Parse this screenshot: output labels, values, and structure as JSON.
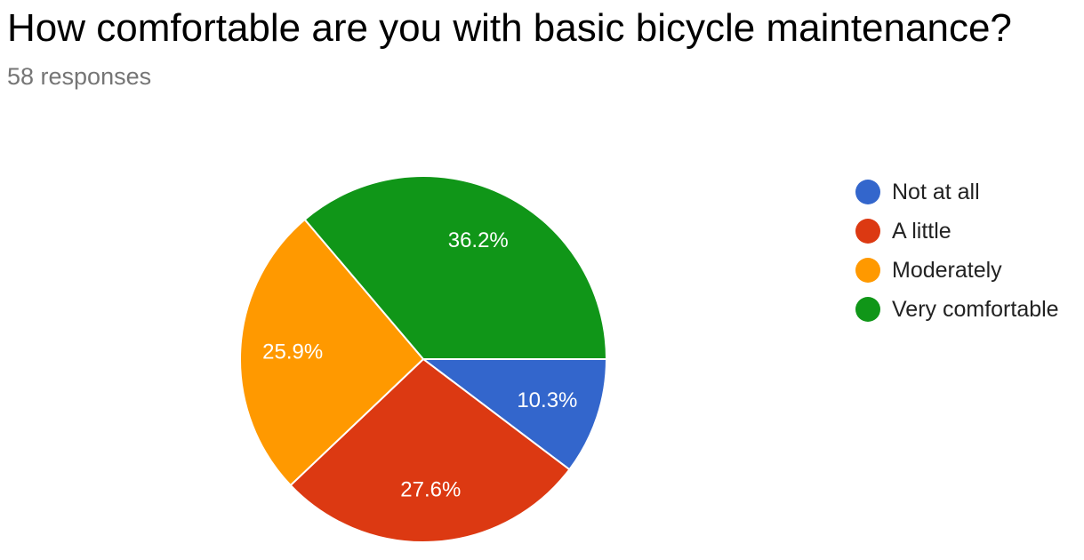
{
  "title": "How comfortable are you with basic bicycle maintenance?",
  "subtitle": "58 responses",
  "chart_data": {
    "type": "pie",
    "title": "How comfortable are you with basic bicycle maintenance?",
    "subtitle": "58 responses",
    "legend_position": "right",
    "slices": [
      {
        "name": "Not at all",
        "value": 10.3,
        "label": "10.3%",
        "color": "#3366cc"
      },
      {
        "name": "A little",
        "value": 27.6,
        "label": "27.6%",
        "color": "#dc3912"
      },
      {
        "name": "Moderately",
        "value": 25.9,
        "label": "25.9%",
        "color": "#ff9900"
      },
      {
        "name": "Very comfortable",
        "value": 36.2,
        "label": "36.2%",
        "color": "#109618"
      }
    ]
  }
}
